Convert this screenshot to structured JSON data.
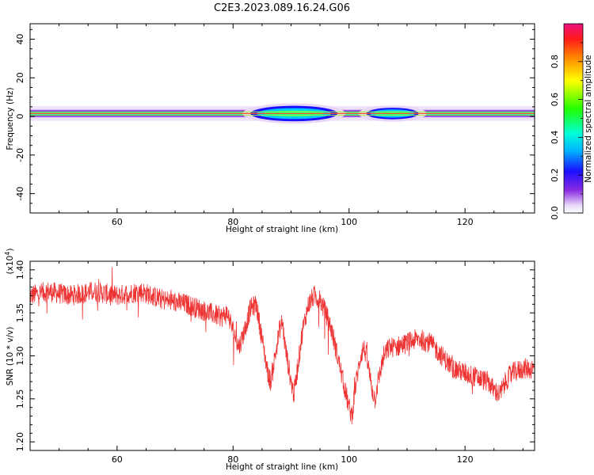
{
  "title": "C2E3.2023.089.16.24.G06",
  "chart_data": [
    {
      "type": "heatmap",
      "xlabel": "Height of straight line (km)",
      "ylabel": "Frequency (Hz)",
      "xlim": [
        45,
        132
      ],
      "ylim": [
        -50,
        48
      ],
      "x_ticks": [
        "60",
        "80",
        "100",
        "120"
      ],
      "y_ticks": [
        "40",
        "20",
        "0",
        "-20",
        "-40"
      ],
      "colorbar": {
        "label": "Normalized spectral amplitude",
        "range": [
          0,
          1
        ],
        "ticks": [
          "0.0",
          "0.2",
          "0.4",
          "0.6",
          "0.8"
        ]
      },
      "band": {
        "center_frequency_hz": 1.5,
        "features": [
          {
            "x_range": [
              83,
              98
            ],
            "max_halfwidth_hz": 4,
            "peak_amplitude": 0.4
          },
          {
            "x_range": [
              103,
              112
            ],
            "max_halfwidth_hz": 3,
            "peak_amplitude": 0.35
          }
        ]
      }
    },
    {
      "type": "line",
      "xlabel": "Height of straight line (km)",
      "ylabel": "SNR (10 * v/v)",
      "y_multiplier": "(x10",
      "y_multiplier_exp": "4",
      "y_multiplier_close": ")",
      "xlim": [
        45,
        132
      ],
      "ylim": [
        1.19,
        1.41
      ],
      "x_ticks": [
        "60",
        "80",
        "100",
        "120"
      ],
      "y_ticks": [
        "1.40",
        "1.35",
        "1.30",
        "1.25",
        "1.20"
      ],
      "series": [
        {
          "color": "#ee3333",
          "trend": [
            [
              45,
              1.37
            ],
            [
              48,
              1.375
            ],
            [
              52,
              1.37
            ],
            [
              56,
              1.375
            ],
            [
              60,
              1.37
            ],
            [
              64,
              1.375
            ],
            [
              68,
              1.365
            ],
            [
              72,
              1.36
            ],
            [
              74,
              1.355
            ],
            [
              76,
              1.35
            ],
            [
              78,
              1.345
            ],
            [
              79,
              1.35
            ],
            [
              80,
              1.33
            ],
            [
              81,
              1.31
            ],
            [
              82,
              1.33
            ],
            [
              83,
              1.355
            ],
            [
              84,
              1.36
            ],
            [
              85,
              1.32
            ],
            [
              86,
              1.28
            ],
            [
              86.5,
              1.27
            ],
            [
              87,
              1.29
            ],
            [
              88,
              1.33
            ],
            [
              88.5,
              1.34
            ],
            [
              89,
              1.31
            ],
            [
              90,
              1.27
            ],
            [
              90.5,
              1.255
            ],
            [
              91,
              1.28
            ],
            [
              92,
              1.33
            ],
            [
              93,
              1.36
            ],
            [
              94,
              1.37
            ],
            [
              95,
              1.365
            ],
            [
              96,
              1.35
            ],
            [
              97,
              1.33
            ],
            [
              98,
              1.3
            ],
            [
              99,
              1.27
            ],
            [
              100,
              1.24
            ],
            [
              100.5,
              1.23
            ],
            [
              101,
              1.26
            ],
            [
              102,
              1.3
            ],
            [
              102.5,
              1.31
            ],
            [
              103,
              1.3
            ],
            [
              104,
              1.26
            ],
            [
              104.5,
              1.25
            ],
            [
              105,
              1.27
            ],
            [
              106,
              1.3
            ],
            [
              107,
              1.31
            ],
            [
              108,
              1.31
            ],
            [
              110,
              1.315
            ],
            [
              112,
              1.32
            ],
            [
              114,
              1.315
            ],
            [
              116,
              1.3
            ],
            [
              118,
              1.285
            ],
            [
              120,
              1.28
            ],
            [
              122,
              1.275
            ],
            [
              124,
              1.27
            ],
            [
              125,
              1.26
            ],
            [
              126,
              1.255
            ],
            [
              127,
              1.27
            ],
            [
              128,
              1.28
            ],
            [
              130,
              1.285
            ],
            [
              132,
              1.285
            ]
          ],
          "noise_amplitude": 0.012
        }
      ]
    }
  ]
}
